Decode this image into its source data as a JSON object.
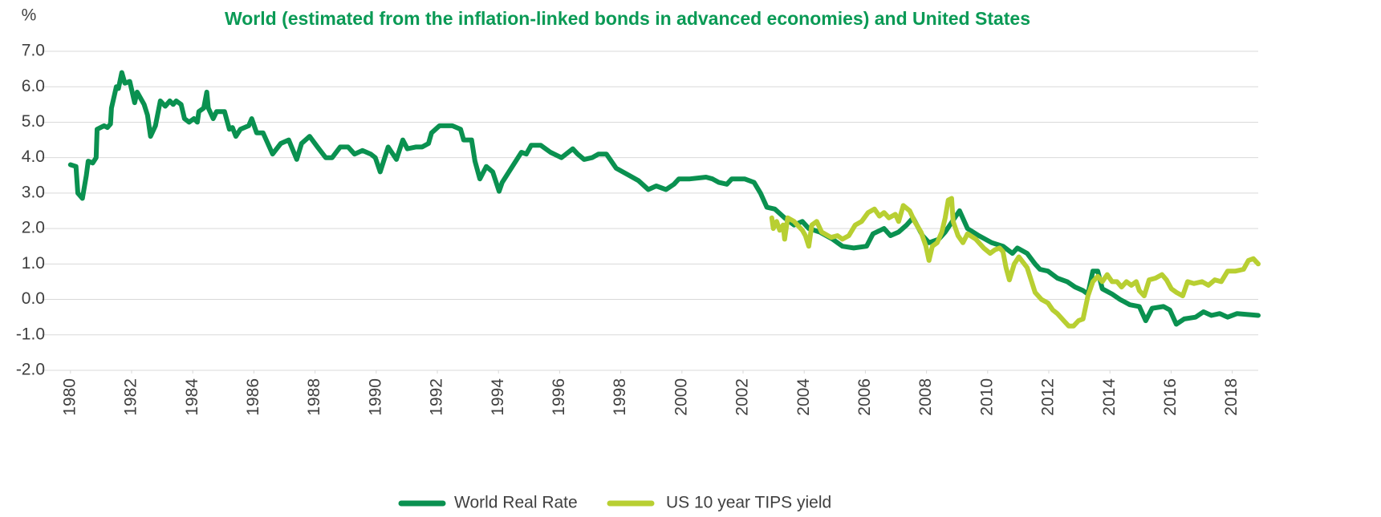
{
  "chart_data": {
    "type": "line",
    "title": "World (estimated from the inflation-linked bonds in advanced economies) and United States",
    "y_label": "%",
    "xlim": [
      1979.9,
      2018.85
    ],
    "xticks": [
      1980,
      1982,
      1984,
      1986,
      1988,
      1990,
      1992,
      1994,
      1996,
      1998,
      2000,
      2002,
      2004,
      2006,
      2008,
      2010,
      2012,
      2014,
      2016,
      2018
    ],
    "ylim": [
      -2,
      7
    ],
    "yticks": [
      {
        "value": -2,
        "label": "-2.0"
      },
      {
        "value": -1,
        "label": "-1.0"
      },
      {
        "value": 0,
        "label": "0.0"
      },
      {
        "value": 1,
        "label": "1.0"
      },
      {
        "value": 2,
        "label": "2.0"
      },
      {
        "value": 3,
        "label": "3.0"
      },
      {
        "value": 4,
        "label": "4.0"
      },
      {
        "value": 5,
        "label": "5.0"
      },
      {
        "value": 6,
        "label": "6.0"
      },
      {
        "value": 7,
        "label": "7.0"
      }
    ],
    "grid": true,
    "legend": "bottom",
    "series": [
      {
        "name": "World Real Rate",
        "color": "#0a9150",
        "x": [
          1980.0,
          1980.18,
          1980.24,
          1980.39,
          1980.52,
          1980.58,
          1980.73,
          1980.84,
          1980.87,
          1981.1,
          1981.21,
          1981.31,
          1981.34,
          1981.5,
          1981.57,
          1981.68,
          1981.78,
          1981.94,
          1982.1,
          1982.18,
          1982.41,
          1982.52,
          1982.62,
          1982.78,
          1982.94,
          1983.1,
          1983.25,
          1983.36,
          1983.46,
          1983.62,
          1983.73,
          1983.88,
          1984.04,
          1984.15,
          1984.2,
          1984.36,
          1984.46,
          1984.51,
          1984.67,
          1984.78,
          1985.04,
          1985.2,
          1985.3,
          1985.41,
          1985.56,
          1985.83,
          1985.93,
          1986.09,
          1986.3,
          1986.61,
          1986.88,
          1987.14,
          1987.4,
          1987.56,
          1987.82,
          1988.08,
          1988.35,
          1988.56,
          1988.82,
          1989.08,
          1989.29,
          1989.55,
          1989.82,
          1989.97,
          1990.13,
          1990.39,
          1990.66,
          1990.87,
          1991.02,
          1991.29,
          1991.5,
          1991.71,
          1991.81,
          1992.07,
          1992.49,
          1992.76,
          1992.86,
          1993.12,
          1993.23,
          1993.39,
          1993.6,
          1993.81,
          1994.02,
          1994.12,
          1994.49,
          1994.75,
          1994.91,
          1995.07,
          1995.38,
          1995.7,
          1996.06,
          1996.43,
          1996.59,
          1996.8,
          1997.06,
          1997.27,
          1997.53,
          1997.85,
          1998.27,
          1998.58,
          1998.9,
          1999.16,
          1999.48,
          1999.74,
          1999.9,
          2000.26,
          2000.79,
          2001.0,
          2001.21,
          2001.47,
          2001.63,
          2002.05,
          2002.36,
          2002.57,
          2002.78,
          2003.04,
          2003.36,
          2003.67,
          2003.94,
          2004.15,
          2004.51,
          2004.93,
          2005.25,
          2005.62,
          2006.04,
          2006.25,
          2006.61,
          2006.82,
          2007.09,
          2007.35,
          2007.56,
          2007.87,
          2008.08,
          2008.4,
          2008.61,
          2008.92,
          2009.08,
          2009.34,
          2009.71,
          2010.13,
          2010.5,
          2010.81,
          2010.97,
          2011.29,
          2011.55,
          2011.71,
          2011.97,
          2012.28,
          2012.6,
          2012.86,
          2013.12,
          2013.28,
          2013.44,
          2013.6,
          2013.75,
          2014.07,
          2014.33,
          2014.65,
          2014.96,
          2015.17,
          2015.38,
          2015.75,
          2015.96,
          2016.17,
          2016.43,
          2016.8,
          2017.06,
          2017.32,
          2017.59,
          2017.85,
          2018.16,
          2018.85
        ],
        "values": [
          3.8,
          3.75,
          3.0,
          2.85,
          3.5,
          3.9,
          3.85,
          4.0,
          4.8,
          4.9,
          4.85,
          4.95,
          5.4,
          6.0,
          5.95,
          6.4,
          6.1,
          6.15,
          5.55,
          5.85,
          5.5,
          5.2,
          4.6,
          4.9,
          5.6,
          5.45,
          5.6,
          5.5,
          5.6,
          5.5,
          5.1,
          5.0,
          5.1,
          5.0,
          5.3,
          5.4,
          5.85,
          5.4,
          5.1,
          5.3,
          5.3,
          4.8,
          4.85,
          4.6,
          4.8,
          4.9,
          5.1,
          4.7,
          4.7,
          4.1,
          4.4,
          4.5,
          3.95,
          4.4,
          4.6,
          4.3,
          4.0,
          4.0,
          4.3,
          4.3,
          4.1,
          4.2,
          4.1,
          4.0,
          3.6,
          4.3,
          3.95,
          4.5,
          4.25,
          4.3,
          4.3,
          4.4,
          4.7,
          4.9,
          4.9,
          4.8,
          4.5,
          4.5,
          3.9,
          3.4,
          3.75,
          3.6,
          3.05,
          3.3,
          3.8,
          4.15,
          4.1,
          4.35,
          4.35,
          4.15,
          4.0,
          4.25,
          4.1,
          3.95,
          4.0,
          4.1,
          4.1,
          3.7,
          3.5,
          3.35,
          3.1,
          3.2,
          3.1,
          3.25,
          3.4,
          3.4,
          3.45,
          3.4,
          3.3,
          3.25,
          3.4,
          3.4,
          3.3,
          3.0,
          2.6,
          2.55,
          2.3,
          2.1,
          2.2,
          2.0,
          1.9,
          1.7,
          1.5,
          1.45,
          1.5,
          1.85,
          2.0,
          1.8,
          1.9,
          2.1,
          2.3,
          1.8,
          1.6,
          1.7,
          1.9,
          2.3,
          2.5,
          2.0,
          1.8,
          1.6,
          1.5,
          1.3,
          1.45,
          1.3,
          1.0,
          0.85,
          0.8,
          0.6,
          0.5,
          0.35,
          0.25,
          0.15,
          0.8,
          0.8,
          0.3,
          0.15,
          0.0,
          -0.15,
          -0.2,
          -0.6,
          -0.25,
          -0.2,
          -0.3,
          -0.7,
          -0.55,
          -0.5,
          -0.35,
          -0.45,
          -0.4,
          -0.5,
          -0.4,
          -0.45
        ]
      },
      {
        "name": "US 10 year TIPS yield",
        "color": "#b8cf32",
        "x": [
          2002.94,
          2002.99,
          2003.1,
          2003.2,
          2003.31,
          2003.36,
          2003.46,
          2003.67,
          2003.94,
          2004.04,
          2004.15,
          2004.25,
          2004.41,
          2004.57,
          2004.88,
          2005.09,
          2005.25,
          2005.46,
          2005.67,
          2005.88,
          2006.09,
          2006.3,
          2006.46,
          2006.61,
          2006.77,
          2006.98,
          2007.09,
          2007.24,
          2007.45,
          2007.61,
          2007.82,
          2007.98,
          2008.08,
          2008.19,
          2008.35,
          2008.5,
          2008.61,
          2008.71,
          2008.82,
          2008.87,
          2009.03,
          2009.19,
          2009.34,
          2009.61,
          2009.87,
          2010.08,
          2010.24,
          2010.39,
          2010.5,
          2010.6,
          2010.71,
          2010.87,
          2011.02,
          2011.29,
          2011.55,
          2011.76,
          2011.97,
          2012.13,
          2012.28,
          2012.49,
          2012.65,
          2012.81,
          2012.97,
          2013.12,
          2013.28,
          2013.44,
          2013.6,
          2013.75,
          2013.91,
          2014.07,
          2014.23,
          2014.38,
          2014.54,
          2014.7,
          2014.86,
          2014.96,
          2015.12,
          2015.28,
          2015.49,
          2015.7,
          2015.85,
          2016.01,
          2016.17,
          2016.38,
          2016.54,
          2016.75,
          2017.01,
          2017.22,
          2017.43,
          2017.64,
          2017.85,
          2018.11,
          2018.37,
          2018.53,
          2018.69,
          2018.85
        ],
        "values": [
          2.3,
          2.0,
          2.2,
          1.95,
          2.1,
          1.7,
          2.3,
          2.2,
          1.95,
          1.8,
          1.5,
          2.1,
          2.2,
          1.9,
          1.75,
          1.8,
          1.7,
          1.8,
          2.1,
          2.2,
          2.45,
          2.55,
          2.35,
          2.45,
          2.3,
          2.4,
          2.2,
          2.65,
          2.5,
          2.2,
          1.9,
          1.5,
          1.1,
          1.5,
          1.6,
          1.9,
          2.3,
          2.8,
          2.85,
          2.2,
          1.8,
          1.6,
          1.85,
          1.7,
          1.45,
          1.3,
          1.4,
          1.45,
          1.35,
          0.9,
          0.55,
          1.0,
          1.2,
          0.9,
          0.2,
          0.0,
          -0.1,
          -0.3,
          -0.4,
          -0.6,
          -0.75,
          -0.75,
          -0.6,
          -0.55,
          0.1,
          0.5,
          0.65,
          0.5,
          0.7,
          0.5,
          0.5,
          0.35,
          0.5,
          0.4,
          0.5,
          0.25,
          0.1,
          0.55,
          0.6,
          0.7,
          0.55,
          0.3,
          0.2,
          0.1,
          0.5,
          0.45,
          0.5,
          0.4,
          0.55,
          0.5,
          0.8,
          0.8,
          0.85,
          1.1,
          1.15,
          1.0
        ]
      }
    ]
  }
}
